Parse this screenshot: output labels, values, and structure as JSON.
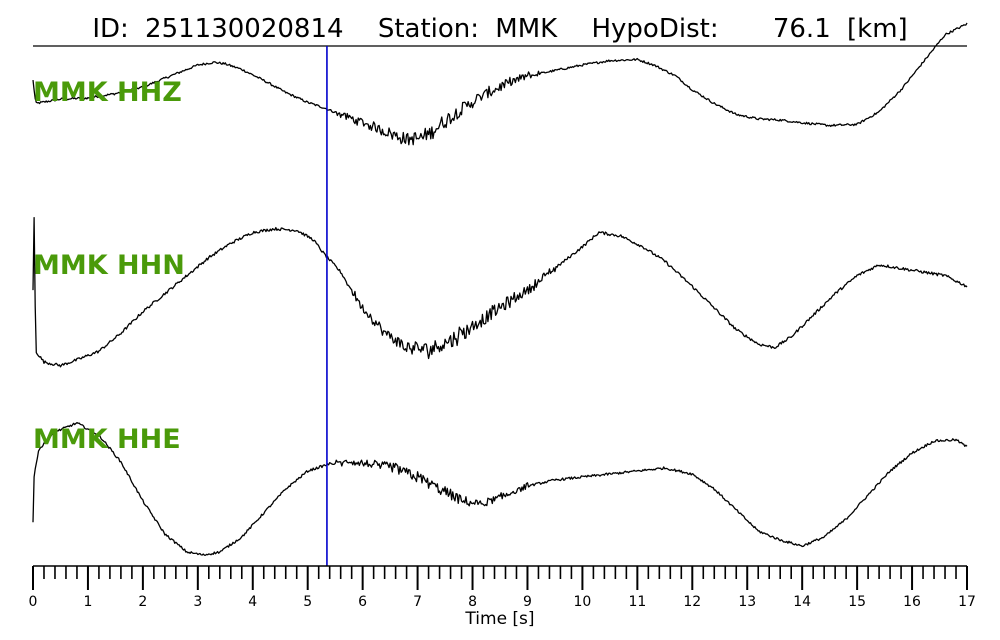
{
  "title": {
    "id_label": "ID:",
    "id_value": "251130020814",
    "station_label": "Station:",
    "station_value": "MMK",
    "hypodist_label": "HypoDist:",
    "hypodist_value": "76.1",
    "hypodist_unit": "[km]"
  },
  "colors": {
    "trace": "#000000",
    "label": "#4a9a0a",
    "marker": "#0000cc"
  },
  "chart_data": {
    "type": "line",
    "xlabel": "Time [s]",
    "ylabel": "",
    "xlim": [
      0,
      17
    ],
    "x_ticks": [
      "0",
      "1",
      "2",
      "3",
      "4",
      "5",
      "6",
      "7",
      "8",
      "9",
      "10",
      "11",
      "12",
      "13",
      "14",
      "15",
      "16",
      "17"
    ],
    "minor_tick_step": 0.2,
    "grid": false,
    "pick_time": 5.35,
    "series": [
      {
        "name": "MMK HHZ",
        "t": [
          0,
          0.05,
          0.5,
          1,
          1.5,
          2,
          2.5,
          3,
          3.3,
          3.5,
          3.8,
          4.2,
          4.6,
          5,
          5.3,
          5.6,
          6,
          6.4,
          6.8,
          7.1,
          7.4,
          7.8,
          8.2,
          8.6,
          9,
          9.5,
          10,
          10.5,
          11,
          11.3,
          11.7,
          12,
          12.4,
          12.8,
          13.2,
          13.6,
          14,
          14.5,
          15,
          15.4,
          15.8,
          16.2,
          16.6,
          17
        ],
        "values": [
          0.72,
          0.3,
          0.38,
          0.4,
          0.48,
          0.6,
          0.8,
          1.0,
          1.05,
          1.02,
          0.92,
          0.72,
          0.5,
          0.32,
          0.22,
          0.1,
          -0.05,
          -0.2,
          -0.35,
          -0.32,
          -0.1,
          0.2,
          0.45,
          0.65,
          0.8,
          0.9,
          1.0,
          1.08,
          1.1,
          1.0,
          0.8,
          0.55,
          0.3,
          0.1,
          0.02,
          0.0,
          -0.05,
          -0.1,
          -0.08,
          0.15,
          0.55,
          1.05,
          1.55,
          1.75
        ],
        "noise_amp": 0.14,
        "noise_from": 5.5,
        "noise_to": 9.2
      },
      {
        "name": "MMK HHN",
        "t": [
          0,
          0.02,
          0.05,
          0.2,
          0.5,
          0.8,
          1.2,
          1.6,
          2,
          2.4,
          2.8,
          3.2,
          3.6,
          4,
          4.4,
          4.8,
          5.1,
          5.3,
          5.6,
          6,
          6.4,
          6.8,
          7.2,
          7.6,
          8,
          8.5,
          9,
          9.5,
          10,
          10.3,
          10.7,
          11.1,
          11.5,
          12,
          12.4,
          12.8,
          13.2,
          13.5,
          13.8,
          14.2,
          14.6,
          15,
          15.4,
          15.8,
          16.2,
          16.6,
          17
        ],
        "values": [
          0.25,
          1.25,
          -0.6,
          -0.75,
          -0.8,
          -0.72,
          -0.6,
          -0.35,
          -0.05,
          0.2,
          0.45,
          0.7,
          0.9,
          1.05,
          1.1,
          1.08,
          0.95,
          0.75,
          0.5,
          0.0,
          -0.35,
          -0.55,
          -0.58,
          -0.45,
          -0.25,
          0.0,
          0.25,
          0.55,
          0.85,
          1.05,
          1.0,
          0.85,
          0.65,
          0.3,
          0.0,
          -0.3,
          -0.5,
          -0.55,
          -0.4,
          -0.1,
          0.2,
          0.45,
          0.6,
          0.55,
          0.5,
          0.45,
          0.3
        ],
        "noise_amp": 0.12,
        "noise_from": 5.7,
        "noise_to": 9.5
      },
      {
        "name": "MMK HHE",
        "t": [
          0,
          0.02,
          0.1,
          0.4,
          0.8,
          1.2,
          1.6,
          2,
          2.4,
          2.8,
          3.1,
          3.4,
          3.8,
          4.2,
          4.6,
          5,
          5.4,
          5.8,
          6.2,
          6.6,
          7,
          7.4,
          7.8,
          8.2,
          8.6,
          9,
          9.5,
          10,
          10.5,
          11,
          11.5,
          12,
          12.4,
          12.8,
          13.2,
          13.6,
          14,
          14.4,
          14.8,
          15.2,
          15.6,
          16,
          16.4,
          16.8,
          17
        ],
        "values": [
          -0.75,
          0.0,
          0.45,
          0.75,
          0.9,
          0.7,
          0.25,
          -0.4,
          -0.95,
          -1.25,
          -1.3,
          -1.25,
          -1.0,
          -0.6,
          -0.2,
          0.1,
          0.22,
          0.25,
          0.2,
          0.15,
          0.0,
          -0.2,
          -0.4,
          -0.45,
          -0.3,
          -0.15,
          -0.05,
          0.0,
          0.05,
          0.1,
          0.15,
          0.05,
          -0.2,
          -0.55,
          -0.9,
          -1.05,
          -1.15,
          -1.0,
          -0.7,
          -0.3,
          0.1,
          0.4,
          0.6,
          0.62,
          0.5
        ],
        "noise_amp": 0.1,
        "noise_from": 5.5,
        "noise_to": 9.0
      }
    ]
  }
}
